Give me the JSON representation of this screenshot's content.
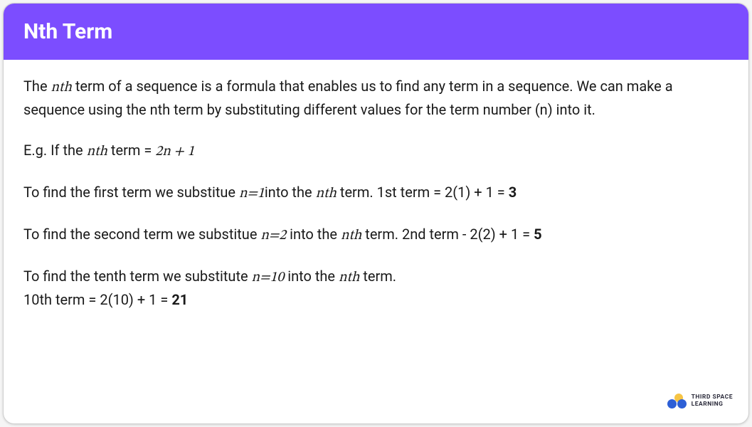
{
  "colors": {
    "header_bg": "#7c4dff",
    "card_bg": "#ffffff",
    "text": "#1a1a1a",
    "logo_yellow": "#f6c445",
    "logo_blue": "#2d5fd6",
    "logo_text": "#2a2a3a"
  },
  "header": {
    "title": "Nth Term"
  },
  "body": {
    "p1_a": "The ",
    "p1_nth": "nth",
    "p1_b": " term of a sequence is a formula that enables us to find any term in a sequence. We can make a sequence using the nth term by substituting different values for the term number (n) into it.",
    "p2_a": "E.g. If the ",
    "p2_nth": "nth",
    "p2_b": " term = ",
    "p2_formula": "2n + 1",
    "p3_a": "To find the first term we substitue  ",
    "p3_sub": "n=1",
    "p3_b": "into the ",
    "p3_nth": "nth",
    "p3_c": " term. 1st term = 2(1) + 1 = ",
    "p3_ans": "3",
    "p4_a": "To find the second term we substitue ",
    "p4_sub": "n=2",
    "p4_b": " into the ",
    "p4_nth": "nth",
    "p4_c": " term. 2nd term - 2(2) + 1 = ",
    "p4_ans": "5",
    "p5_a": "To find the tenth term we substitute ",
    "p5_sub": "n=10",
    "p5_b": " into the ",
    "p5_nth": "nth",
    "p5_c": " term.",
    "p5_d": "10th term = 2(10) + 1 = ",
    "p5_ans": "21"
  },
  "logo": {
    "line1": "THIRD SPACE",
    "line2": "LEARNING"
  }
}
